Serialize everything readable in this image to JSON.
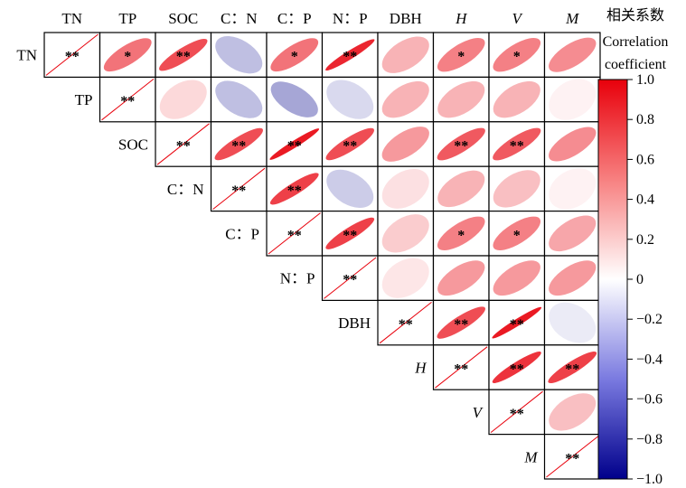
{
  "chart_data": {
    "type": "heatmap",
    "variables": [
      {
        "name": "TN",
        "italic": false
      },
      {
        "name": "TP",
        "italic": false
      },
      {
        "name": "SOC",
        "italic": false
      },
      {
        "name": "C：N",
        "italic": false
      },
      {
        "name": "C：P",
        "italic": false
      },
      {
        "name": "N：P",
        "italic": false
      },
      {
        "name": "DBH",
        "italic": false
      },
      {
        "name": "H",
        "italic": true
      },
      {
        "name": "V",
        "italic": true
      },
      {
        "name": "M",
        "italic": true
      }
    ],
    "correlations": [
      [
        1,
        0.55,
        0.7,
        -0.25,
        0.55,
        0.85,
        0.3,
        0.5,
        0.5,
        0.45
      ],
      [
        0.55,
        1,
        0.15,
        -0.25,
        -0.35,
        -0.15,
        0.3,
        0.3,
        0.3,
        0.05
      ],
      [
        0.7,
        0.15,
        1,
        0.7,
        0.9,
        0.7,
        0.4,
        0.65,
        0.65,
        0.45
      ],
      [
        -0.25,
        -0.25,
        0.7,
        1,
        0.75,
        -0.2,
        0.12,
        0.3,
        0.25,
        0.05
      ],
      [
        0.55,
        -0.35,
        0.9,
        0.75,
        1,
        0.75,
        0.2,
        0.5,
        0.5,
        0.35
      ],
      [
        0.85,
        -0.15,
        0.7,
        -0.2,
        0.75,
        1,
        0.1,
        0.4,
        0.4,
        0.4
      ],
      [
        0.3,
        0.3,
        0.4,
        0.12,
        0.2,
        0.1,
        1,
        0.7,
        0.9,
        -0.08
      ],
      [
        0.5,
        0.3,
        0.65,
        0.3,
        0.5,
        0.4,
        0.7,
        1,
        0.8,
        0.75
      ],
      [
        0.5,
        0.3,
        0.65,
        0.25,
        0.5,
        0.4,
        0.9,
        0.8,
        1,
        0.25
      ],
      [
        0.45,
        0.05,
        0.45,
        0.05,
        0.35,
        0.4,
        -0.08,
        0.75,
        0.25,
        1
      ]
    ],
    "significance": [
      [
        "**",
        "*",
        "**",
        "",
        "*",
        "**",
        "",
        "*",
        "*",
        ""
      ],
      [
        "*",
        "**",
        "",
        "",
        "",
        "",
        "",
        "",
        "",
        ""
      ],
      [
        "**",
        "",
        "**",
        "**",
        "**",
        "**",
        "",
        "**",
        "**",
        ""
      ],
      [
        "",
        "",
        "**",
        "**",
        "**",
        "",
        "",
        "",
        "",
        ""
      ],
      [
        "*",
        "",
        "**",
        "**",
        "**",
        "**",
        "",
        "*",
        "*",
        ""
      ],
      [
        "**",
        "",
        "**",
        "",
        "**",
        "**",
        "",
        "",
        "",
        ""
      ],
      [
        "",
        "",
        "",
        "",
        "",
        "",
        "**",
        "**",
        "**",
        ""
      ],
      [
        "*",
        "",
        "**",
        "",
        "*",
        "",
        "**",
        "**",
        "**",
        "**"
      ],
      [
        "*",
        "",
        "**",
        "",
        "*",
        "",
        "**",
        "**",
        "**",
        ""
      ],
      [
        "",
        "",
        "",
        "",
        "",
        "",
        "",
        "**",
        "",
        "**"
      ]
    ],
    "colorbar": {
      "title_cn": "相关系数",
      "title_en_line1": "Correlation",
      "title_en_line2": "coefficient",
      "range": [
        -1.0,
        1.0
      ],
      "ticks": [
        1.0,
        0.8,
        0.6,
        0.4,
        0.2,
        0,
        -0.2,
        -0.4,
        -0.6,
        -0.8,
        -1.0
      ],
      "tick_labels": [
        "1.0",
        "0.8",
        "0.6",
        "0.4",
        "0.2",
        "0",
        "−0.2",
        "−0.4",
        "−0.6",
        "−0.8",
        "−1.0"
      ],
      "color_high": "#e8000b",
      "color_mid": "#ffffff",
      "color_low": "#00008b"
    },
    "layout_kind": "upper-triangle with diagonal labels",
    "legend_position": "right"
  }
}
